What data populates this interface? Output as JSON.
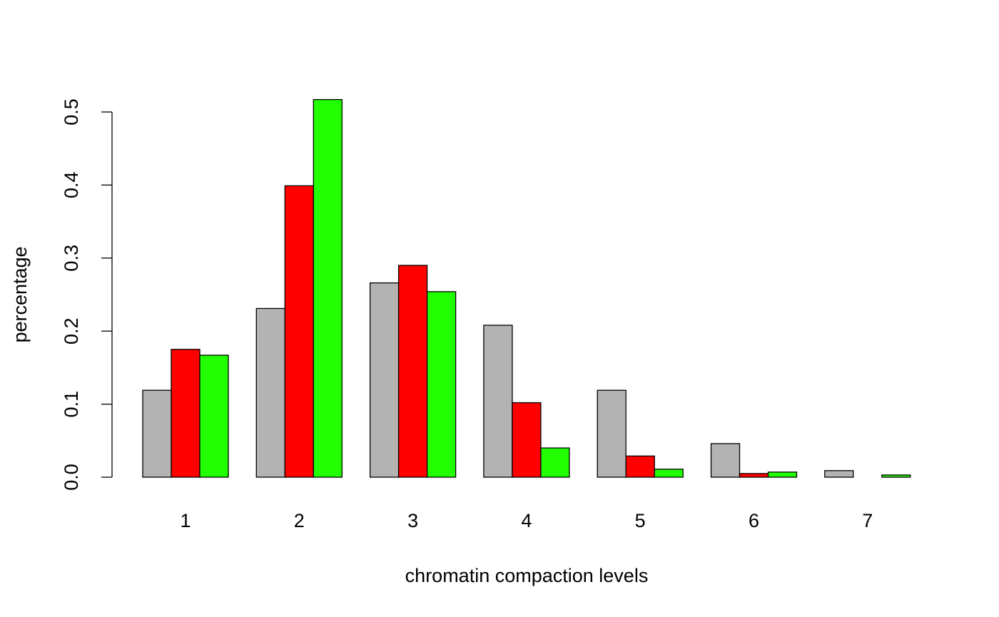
{
  "chart_data": {
    "type": "bar",
    "categories": [
      "1",
      "2",
      "3",
      "4",
      "5",
      "6",
      "7"
    ],
    "series": [
      {
        "color": "#b3b3b3",
        "values": [
          0.119,
          0.231,
          0.266,
          0.208,
          0.119,
          0.046,
          0.009
        ]
      },
      {
        "color": "#ff0000",
        "values": [
          0.175,
          0.399,
          0.29,
          0.102,
          0.029,
          0.005,
          0.0
        ]
      },
      {
        "color": "#22ff00",
        "values": [
          0.167,
          0.517,
          0.254,
          0.04,
          0.011,
          0.007,
          0.003
        ]
      }
    ],
    "title": "",
    "xlabel": "chromatin compaction levels",
    "ylabel": "percentage",
    "ylim": [
      0,
      0.5
    ],
    "yticks": [
      "0.0",
      "0.1",
      "0.2",
      "0.3",
      "0.4",
      "0.5"
    ],
    "grid": false,
    "legend": "none"
  }
}
